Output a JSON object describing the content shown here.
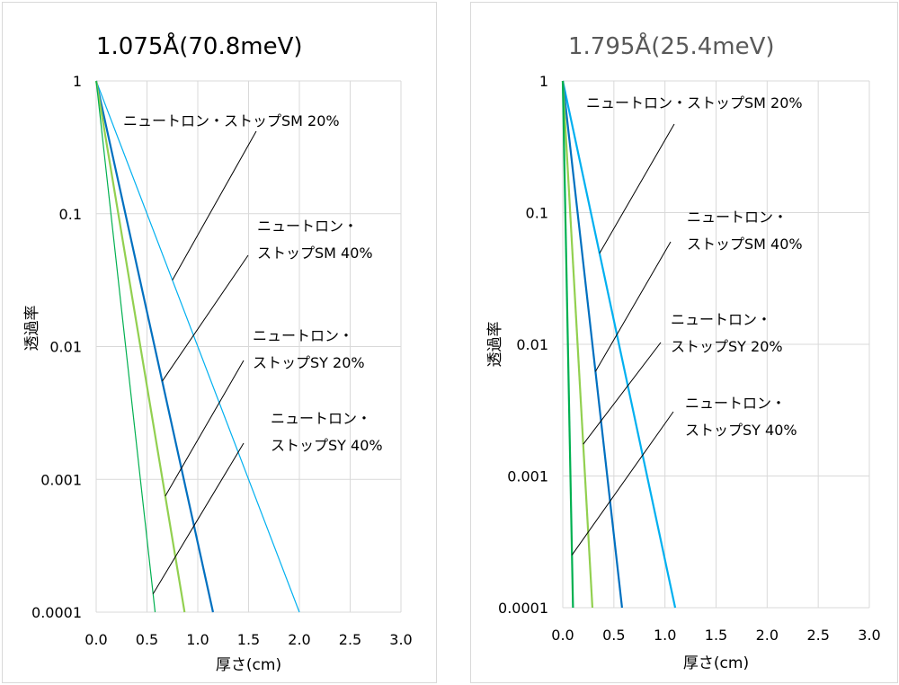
{
  "colors": {
    "sm20": "#00b0f0",
    "sm40": "#0070c0",
    "sy20": "#92d050",
    "sy40": "#00b050",
    "grid": "#d9d9d9",
    "leader": "#000000"
  },
  "chart_data": [
    {
      "type": "line",
      "title": "1.075Å(70.8meV)",
      "title_color": "#000000",
      "xlabel": "厚さ(cm)",
      "ylabel": "透過率",
      "xlim": [
        0,
        3
      ],
      "ylim": [
        0.0001,
        1
      ],
      "yscale": "log",
      "xticks": [
        "0.0",
        "0.5",
        "1.0",
        "1.5",
        "2.0",
        "2.5",
        "3.0"
      ],
      "yticks": [
        "1",
        "0.1",
        "0.01",
        "0.001",
        "0.0001"
      ],
      "series": [
        {
          "key": "sm20",
          "name": "ニュートロン・ストップSM 20%",
          "label_lines": [
            "ニュートロン・ストップSM 20%"
          ],
          "x": [
            0,
            2.0
          ],
          "y": [
            1,
            0.0001
          ],
          "anchor_x": 0.75,
          "color_key": "sm20",
          "width": 1.2
        },
        {
          "key": "sm40",
          "name": "ニュートロン・ストップSM 40%",
          "label_lines": [
            "ニュートロン・",
            "ストップSM 40%"
          ],
          "x": [
            0,
            1.15
          ],
          "y": [
            1,
            0.0001
          ],
          "anchor_x": 0.65,
          "color_key": "sm40",
          "width": 2.2
        },
        {
          "key": "sy20",
          "name": "ニュートロン・ストップSY 20%",
          "label_lines": [
            "ニュートロン・",
            "ストップSY 20%"
          ],
          "x": [
            0,
            0.87
          ],
          "y": [
            1,
            0.0001
          ],
          "anchor_x": 0.68,
          "color_key": "sy20",
          "width": 2.2
        },
        {
          "key": "sy40",
          "name": "ニュートロン・ストップSY 40%",
          "label_lines": [
            "ニュートロン・",
            "ストップSY 40%"
          ],
          "x": [
            0,
            0.58
          ],
          "y": [
            1,
            0.0001
          ],
          "anchor_x": 0.56,
          "color_key": "sy40",
          "width": 1.2
        }
      ]
    },
    {
      "type": "line",
      "title": "1.795Å(25.4meV)",
      "title_color": "#595959",
      "xlabel": "厚さ(cm)",
      "ylabel": "透過率",
      "xlim": [
        0,
        3
      ],
      "ylim": [
        0.0001,
        1
      ],
      "yscale": "log",
      "xticks": [
        "0.0",
        "0.5",
        "1.0",
        "1.5",
        "2.0",
        "2.5",
        "3.0"
      ],
      "yticks": [
        "1",
        "0.1",
        "0.01",
        "0.001",
        "0.0001"
      ],
      "series": [
        {
          "key": "sm20",
          "name": "ニュートロン・ストップSM 20%",
          "label_lines": [
            "ニュートロン・ストップSM 20%"
          ],
          "x": [
            0,
            1.1
          ],
          "y": [
            1,
            0.0001
          ],
          "anchor_x": 0.36,
          "color_key": "sm20",
          "width": 2.2
        },
        {
          "key": "sm40",
          "name": "ニュートロン・ストップSM 40%",
          "label_lines": [
            "ニュートロン・",
            "ストップSM 40%"
          ],
          "x": [
            0,
            0.58
          ],
          "y": [
            1,
            0.0001
          ],
          "anchor_x": 0.32,
          "color_key": "sm40",
          "width": 2.2
        },
        {
          "key": "sy20",
          "name": "ニュートロン・ストップSY 20%",
          "label_lines": [
            "ニュートロン・",
            "ストップSY 20%"
          ],
          "x": [
            0,
            0.29
          ],
          "y": [
            1,
            0.0001
          ],
          "anchor_x": 0.2,
          "color_key": "sy20",
          "width": 2.2
        },
        {
          "key": "sy40",
          "name": "ニュートロン・ストップSY 40%",
          "label_lines": [
            "ニュートロン・",
            "ストップSY 40%"
          ],
          "x": [
            0,
            0.1
          ],
          "y": [
            1,
            0.0001
          ],
          "anchor_x": 0.09,
          "color_key": "sy40",
          "width": 2.2
        }
      ]
    }
  ]
}
